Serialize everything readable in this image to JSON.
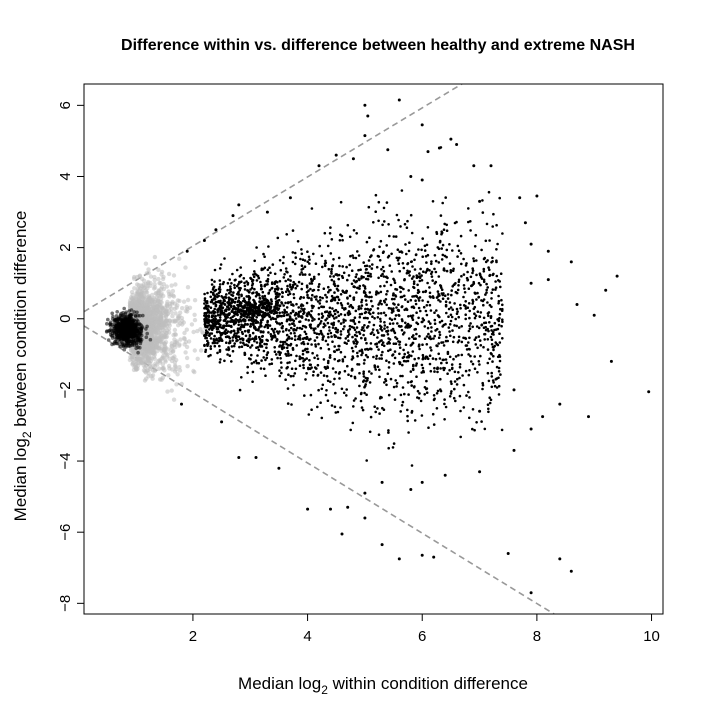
{
  "chart_data": {
    "type": "scatter",
    "title": "Difference within vs. difference between healthy and extreme NASH",
    "xlabel": {
      "prefix": "Median log",
      "sub": "2",
      "suffix": " within condition difference"
    },
    "ylabel": {
      "prefix": "Median log",
      "sub": "2",
      "suffix": " between condition difference"
    },
    "xlim": [
      0.1,
      10.2
    ],
    "ylim": [
      -8.3,
      6.6
    ],
    "x_ticks": [
      {
        "value": 2,
        "label": "2"
      },
      {
        "value": 4,
        "label": "4"
      },
      {
        "value": 6,
        "label": "6"
      },
      {
        "value": 8,
        "label": "8"
      },
      {
        "value": 10,
        "label": "10"
      }
    ],
    "y_ticks": [
      {
        "value": -8,
        "label": "−8"
      },
      {
        "value": -6,
        "label": "−6"
      },
      {
        "value": -4,
        "label": "−4"
      },
      {
        "value": -2,
        "label": "−2"
      },
      {
        "value": 0,
        "label": "0"
      },
      {
        "value": 2,
        "label": "2"
      },
      {
        "value": 4,
        "label": "4"
      },
      {
        "value": 6,
        "label": "6"
      }
    ],
    "reference_lines": [
      {
        "name": "upper-bound",
        "x": [
          0.1,
          7.0
        ],
        "y": [
          0.2,
          6.9
        ],
        "color": "#999999",
        "style": "dashed"
      },
      {
        "name": "lower-bound",
        "x": [
          0.1,
          8.4
        ],
        "y": [
          -0.2,
          -8.4
        ],
        "color": "#999999",
        "style": "dashed"
      }
    ],
    "series": [
      {
        "name": "",
        "color": "#000000",
        "points": [
          [
            5.0,
            6.0
          ],
          [
            5.6,
            6.15
          ],
          [
            5.05,
            5.7
          ],
          [
            5.0,
            5.15
          ],
          [
            6.5,
            5.05
          ],
          [
            6.3,
            4.8
          ],
          [
            6.1,
            4.7
          ],
          [
            5.4,
            4.75
          ],
          [
            4.5,
            4.6
          ],
          [
            6.6,
            4.9
          ],
          [
            5.8,
            4.0
          ],
          [
            6.0,
            3.9
          ],
          [
            6.9,
            4.3
          ],
          [
            7.2,
            4.3
          ],
          [
            7.0,
            3.3
          ],
          [
            7.7,
            3.4
          ],
          [
            8.0,
            3.45
          ],
          [
            7.8,
            2.7
          ],
          [
            7.9,
            2.1
          ],
          [
            8.2,
            1.9
          ],
          [
            9.4,
            1.2
          ],
          [
            9.2,
            0.8
          ],
          [
            8.6,
            1.6
          ],
          [
            8.2,
            1.1
          ],
          [
            7.9,
            1.0
          ],
          [
            8.7,
            0.4
          ],
          [
            9.0,
            0.1
          ],
          [
            9.3,
            -1.2
          ],
          [
            9.95,
            -2.05
          ],
          [
            8.9,
            -2.75
          ],
          [
            8.4,
            -2.4
          ],
          [
            8.1,
            -2.75
          ],
          [
            7.6,
            -2.0
          ],
          [
            7.9,
            -3.1
          ],
          [
            7.0,
            -2.6
          ],
          [
            7.6,
            -3.7
          ],
          [
            7.0,
            -4.3
          ],
          [
            6.4,
            -4.4
          ],
          [
            6.0,
            -4.6
          ],
          [
            5.8,
            -4.8
          ],
          [
            5.3,
            -4.6
          ],
          [
            5.0,
            -4.9
          ],
          [
            4.7,
            -5.3
          ],
          [
            4.4,
            -5.35
          ],
          [
            4.0,
            -5.35
          ],
          [
            5.0,
            -5.6
          ],
          [
            4.6,
            -6.05
          ],
          [
            5.3,
            -6.35
          ],
          [
            5.6,
            -6.75
          ],
          [
            6.0,
            -6.65
          ],
          [
            6.2,
            -6.7
          ],
          [
            7.5,
            -6.6
          ],
          [
            8.4,
            -6.75
          ],
          [
            8.6,
            -7.1
          ],
          [
            7.9,
            -7.7
          ],
          [
            3.1,
            -3.9
          ],
          [
            2.8,
            -3.9
          ],
          [
            3.5,
            -4.2
          ],
          [
            2.5,
            -2.9
          ],
          [
            1.8,
            -2.4
          ],
          [
            2.2,
            2.2
          ],
          [
            2.8,
            3.2
          ],
          [
            3.3,
            3.0
          ],
          [
            4.8,
            4.5
          ],
          [
            3.7,
            3.4
          ],
          [
            6.0,
            5.45
          ],
          [
            4.2,
            4.3
          ],
          [
            2.4,
            2.5
          ],
          [
            1.9,
            1.9
          ],
          [
            2.7,
            2.9
          ]
        ],
        "blob_center": [
          0.85,
          -0.3
        ],
        "band_center": [
          3.1,
          0.3
        ],
        "dense_region_x": [
          2.2,
          7.4
        ],
        "dense_region_y": [
          -4.2,
          4.6
        ]
      },
      {
        "name": "",
        "color": "#bbbbbb",
        "cloud_center": [
          1.2,
          -0.2
        ],
        "cloud_x": [
          0.5,
          3.0
        ],
        "cloud_y": [
          -2.6,
          2.4
        ]
      }
    ]
  }
}
